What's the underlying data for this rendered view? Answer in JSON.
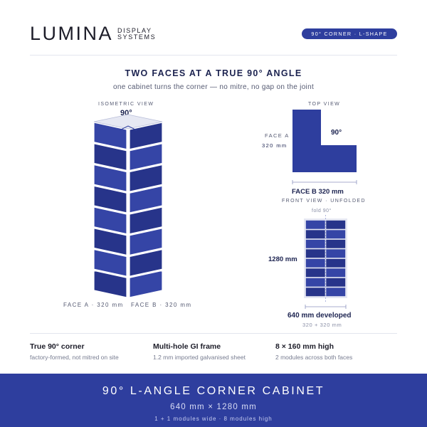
{
  "brand": {
    "name": "LUMINA",
    "sub_line1": "DISPLAY",
    "sub_line2": "SYSTEMS",
    "badge": "90° CORNER · L-SHAPE"
  },
  "headline": {
    "title": "TWO FACES AT A TRUE 90° ANGLE",
    "subtitle": "one cabinet turns the corner — no mitre, no gap on the joint"
  },
  "isometric": {
    "label": "ISOMETRIC VIEW",
    "angle": "90°",
    "face_a": "FACE A · 320 mm",
    "face_b": "FACE B · 320 mm",
    "modules_per_face": 8
  },
  "top_view": {
    "label": "TOP VIEW",
    "face_a_label": "FACE A",
    "face_a_dim": "320 mm",
    "angle": "90°",
    "face_b": "FACE B  320 mm"
  },
  "front_view": {
    "label": "FRONT VIEW · UNFOLDED",
    "fold": "fold  90°",
    "height": "1280 mm",
    "developed": "640 mm developed",
    "developed_sub": "320 + 320 mm",
    "rows": 8,
    "columns": 2
  },
  "features": [
    {
      "title": "True 90° corner",
      "sub": "factory-formed, not mitred on site"
    },
    {
      "title": "Multi-hole GI frame",
      "sub": "1.2 mm imported galvanised sheet"
    },
    {
      "title": "8 × 160 mm high",
      "sub": "2 modules across both faces"
    }
  ],
  "banner": {
    "title": "90° L-ANGLE CORNER CABINET",
    "dims": "640 mm  ×  1280 mm",
    "modules": "1 + 1 modules wide  ·  8 modules high"
  },
  "colors": {
    "accent": "#2e3e9e",
    "module": "#3545a6",
    "module_dark": "#27348a"
  }
}
